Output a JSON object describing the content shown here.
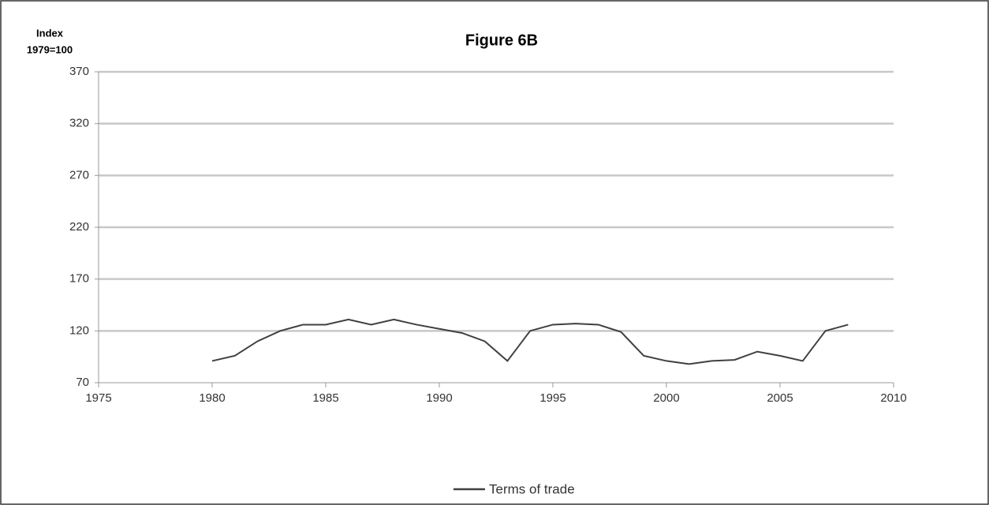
{
  "chart_data": {
    "type": "line",
    "title": "Figure 6B",
    "y_label": [
      "Index",
      "1979=100"
    ],
    "x": [
      1980,
      1981,
      1982,
      1983,
      1984,
      1985,
      1986,
      1987,
      1988,
      1989,
      1990,
      1991,
      1992,
      1993,
      1994,
      1995,
      1996,
      1997,
      1998,
      1999,
      2000,
      2001,
      2002,
      2003,
      2004,
      2005,
      2006,
      2007,
      2008
    ],
    "series": [
      {
        "name": "Terms of trade",
        "color": "#404040",
        "values": [
          91,
          96,
          110,
          120,
          126,
          126,
          131,
          126,
          131,
          126,
          122,
          118,
          110,
          91,
          120,
          126,
          127,
          126,
          119,
          96,
          91,
          88,
          91,
          92,
          100,
          96,
          91,
          120,
          126
        ]
      }
    ],
    "xlim": [
      1975,
      2010
    ],
    "xticks": [
      1975,
      1980,
      1985,
      1990,
      1995,
      2000,
      2005,
      2010
    ],
    "ylim": [
      70,
      370
    ],
    "yticks": [
      70,
      120,
      170,
      220,
      270,
      320,
      370
    ],
    "grid": true,
    "legend": "bottom"
  }
}
